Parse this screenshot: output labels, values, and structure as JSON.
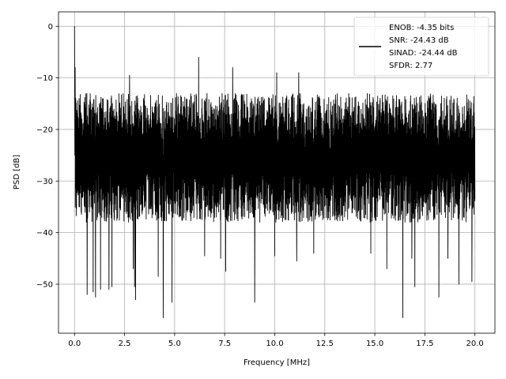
{
  "chart_data": {
    "type": "line",
    "title": "",
    "xlabel": "Frequency [MHz]",
    "ylabel": "PSD [dB]",
    "xlim": [
      -0.8,
      21.0
    ],
    "ylim": [
      -59.5,
      2.8
    ],
    "xticks": [
      0.0,
      2.5,
      5.0,
      7.5,
      10.0,
      12.5,
      15.0,
      17.5,
      20.0
    ],
    "xtick_labels": [
      "0.0",
      "2.5",
      "5.0",
      "7.5",
      "10.0",
      "12.5",
      "15.0",
      "17.5",
      "20.0"
    ],
    "yticks": [
      0,
      -10,
      -20,
      -30,
      -40,
      -50
    ],
    "ytick_labels": [
      "0",
      "−10",
      "−20",
      "−30",
      "−40",
      "−50"
    ],
    "grid": true,
    "legend_position": "top-right",
    "legend_text": [
      "ENOB: -4.35 bits",
      "SNR: -24.43 dB",
      "SINAD: -24.44 dB",
      "SFDR: 2.77"
    ],
    "series": [
      {
        "color": "#000000",
        "description": "dense noise floor from 0 to 20 MHz, mean about -25 dB, upper envelope about -13 dB, lower dips to about -57 dB",
        "x_range": [
          0.0,
          20.0
        ],
        "dc_peak": 0.0,
        "upper_envelope": -13,
        "lower_typical": -36,
        "deep_dips": [
          [
            0.63,
            -52.0
          ],
          [
            0.93,
            -51.5
          ],
          [
            1.05,
            -52.5
          ],
          [
            1.3,
            -51.0
          ],
          [
            1.72,
            -51.0
          ],
          [
            1.87,
            -50.5
          ],
          [
            2.75,
            -47.5
          ],
          [
            2.93,
            -47.0
          ],
          [
            3.05,
            -47.0
          ],
          [
            3.0,
            -50.5
          ],
          [
            3.05,
            -53.0
          ],
          [
            4.18,
            -48.5
          ],
          [
            4.43,
            -56.5
          ],
          [
            4.87,
            -53.5
          ],
          [
            6.2,
            -44.0
          ],
          [
            6.5,
            -44.5
          ],
          [
            7.3,
            -45.0
          ],
          [
            7.55,
            -47.5
          ],
          [
            9.0,
            -53.5
          ],
          [
            10.0,
            -44.5
          ],
          [
            11.1,
            -45.5
          ],
          [
            11.95,
            -44.0
          ],
          [
            14.8,
            -44.0
          ],
          [
            15.6,
            -47.0
          ],
          [
            16.4,
            -56.5
          ],
          [
            16.85,
            -45.0
          ],
          [
            17.0,
            -50.5
          ],
          [
            18.2,
            -52.5
          ],
          [
            18.65,
            -45.0
          ],
          [
            19.2,
            -50.0
          ],
          [
            19.85,
            -49.5
          ]
        ],
        "tall_spikes": [
          [
            6.2,
            -6.0
          ],
          [
            2.75,
            -9.5
          ],
          [
            7.9,
            -8.0
          ],
          [
            10.1,
            -9.0
          ],
          [
            11.2,
            -9.0
          ]
        ]
      }
    ]
  }
}
